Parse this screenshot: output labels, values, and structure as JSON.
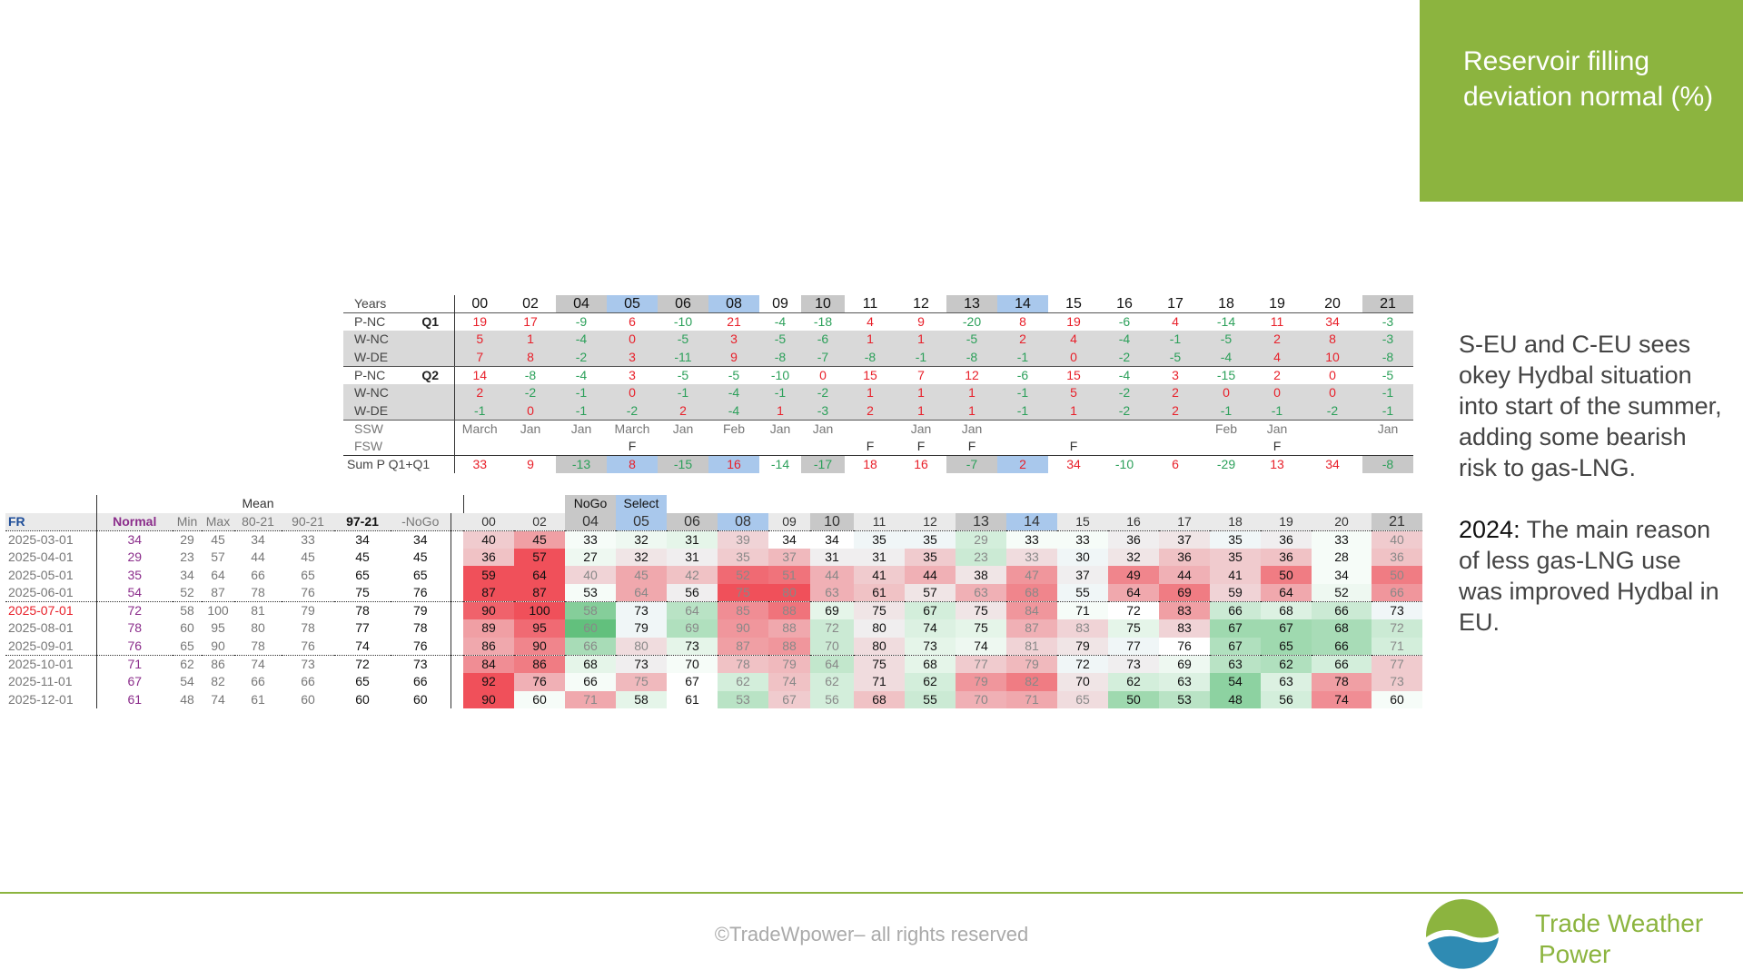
{
  "title": "Reservoir filling deviation normal (%)",
  "side_text": {
    "p1": "S-EU and C-EU sees okey Hydbal situation into start of the summer, adding some bearish risk to gas-LNG.",
    "p2_label": "2024:",
    "p2_rest": " The main reason of less gas-LNG use was improved Hydbal in EU."
  },
  "footer": {
    "copyright": "©TradeWpower– all rights reserved",
    "logo_line1": "Trade Weather",
    "logo_line2": "Power"
  },
  "colors": {
    "accent": "#8cb43f",
    "red": "#e8202a",
    "green": "#2ca05a",
    "blue_hl": "#a9c8ec",
    "gray_hl": "#c8c8c8"
  },
  "top_table": {
    "years_label": "Years",
    "years": [
      "00",
      "02",
      "04",
      "05",
      "06",
      "08",
      "09",
      "10",
      "11",
      "12",
      "13",
      "14",
      "15",
      "16",
      "17",
      "18",
      "19",
      "20",
      "21"
    ],
    "year_hl": [
      "",
      "",
      "g",
      "b",
      "g",
      "b",
      "",
      "g",
      "",
      "",
      "g",
      "b",
      "",
      "",
      "",
      "",
      "",
      "",
      "g"
    ],
    "rows": [
      {
        "label": "P-NC",
        "q": "Q1",
        "gray": false,
        "values": [
          19,
          17,
          -9,
          6,
          -10,
          21,
          -4,
          -18,
          4,
          9,
          -20,
          8,
          19,
          -6,
          4,
          -14,
          11,
          34,
          -3
        ]
      },
      {
        "label": "W-NC",
        "q": "",
        "gray": true,
        "values": [
          5,
          1,
          -4,
          0,
          -5,
          3,
          -5,
          -6,
          1,
          1,
          -5,
          2,
          4,
          -4,
          -1,
          -5,
          2,
          8,
          -3
        ]
      },
      {
        "label": "W-DE",
        "q": "",
        "gray": true,
        "values": [
          7,
          8,
          -2,
          3,
          -11,
          9,
          -8,
          -7,
          -8,
          -1,
          -8,
          -1,
          0,
          -2,
          -5,
          -4,
          4,
          10,
          -8
        ]
      },
      {
        "label": "P-NC",
        "q": "Q2",
        "gray": false,
        "values": [
          14,
          -8,
          -4,
          3,
          -5,
          -5,
          -10,
          0,
          15,
          7,
          12,
          -6,
          15,
          -4,
          3,
          -15,
          2,
          0,
          -5
        ]
      },
      {
        "label": "W-NC",
        "q": "",
        "gray": true,
        "values": [
          2,
          -2,
          -1,
          0,
          -1,
          -4,
          -1,
          -2,
          1,
          1,
          1,
          -1,
          5,
          -2,
          2,
          0,
          0,
          0,
          -1
        ]
      },
      {
        "label": "W-DE",
        "q": "",
        "gray": true,
        "values": [
          -1,
          0,
          -1,
          -2,
          2,
          -4,
          1,
          -3,
          2,
          1,
          1,
          -1,
          1,
          -2,
          2,
          -1,
          -1,
          -2,
          -1
        ]
      }
    ],
    "ssw_label": "SSW",
    "ssw": [
      "March",
      "Jan",
      "Jan",
      "March",
      "Jan",
      "Feb",
      "Jan",
      "Jan",
      "",
      "Jan",
      "Jan",
      "",
      "",
      "",
      "",
      "Feb",
      "Jan",
      "",
      "Jan"
    ],
    "fsw_label": "FSW",
    "fsw": [
      "",
      "",
      "",
      "F",
      "",
      "",
      "",
      "",
      "F",
      "F",
      "F",
      "",
      "F",
      "",
      "",
      "",
      "F",
      "",
      ""
    ],
    "sum_label": "Sum P Q1+Q1",
    "sum": [
      33,
      9,
      -13,
      8,
      -15,
      16,
      -14,
      -17,
      18,
      16,
      -7,
      2,
      34,
      -10,
      6,
      -29,
      13,
      34,
      -8
    ]
  },
  "bottom_table": {
    "mean_label": "Mean",
    "nogo_label": "NoGo",
    "select_label": "Select",
    "region": "FR",
    "stat_headers": [
      "Normal",
      "Min",
      "Max",
      "80-21",
      "90-21",
      "97-21",
      "-NoGo"
    ],
    "years": [
      "00",
      "02",
      "04",
      "05",
      "06",
      "08",
      "09",
      "10",
      "11",
      "12",
      "13",
      "14",
      "15",
      "16",
      "17",
      "18",
      "19",
      "20",
      "21"
    ],
    "rows": [
      {
        "date": "2025-03-01",
        "stats": [
          34,
          29,
          45,
          34,
          33,
          34,
          34
        ],
        "v": [
          40,
          45,
          33,
          32,
          31,
          39,
          34,
          34,
          35,
          35,
          29,
          33,
          33,
          36,
          37,
          35,
          36,
          33,
          40
        ]
      },
      {
        "date": "2025-04-01",
        "stats": [
          29,
          23,
          57,
          44,
          45,
          45,
          45
        ],
        "v": [
          36,
          57,
          27,
          32,
          31,
          35,
          37,
          31,
          31,
          35,
          23,
          33,
          30,
          32,
          36,
          35,
          36,
          28,
          36
        ]
      },
      {
        "date": "2025-05-01",
        "stats": [
          35,
          34,
          64,
          66,
          65,
          65,
          65
        ],
        "v": [
          59,
          64,
          40,
          45,
          42,
          52,
          51,
          44,
          41,
          44,
          38,
          47,
          37,
          49,
          44,
          41,
          50,
          34,
          50
        ]
      },
      {
        "date": "2025-06-01",
        "stats": [
          54,
          52,
          87,
          78,
          76,
          75,
          76
        ],
        "v": [
          87,
          87,
          53,
          64,
          56,
          75,
          80,
          63,
          61,
          57,
          63,
          68,
          55,
          64,
          69,
          59,
          64,
          52,
          66
        ]
      },
      {
        "date": "2025-07-01",
        "stats": [
          72,
          58,
          100,
          81,
          79,
          78,
          79
        ],
        "v": [
          90,
          100,
          58,
          73,
          64,
          85,
          88,
          69,
          75,
          67,
          75,
          84,
          71,
          72,
          83,
          66,
          68,
          66,
          73
        ]
      },
      {
        "date": "2025-08-01",
        "stats": [
          78,
          60,
          95,
          80,
          78,
          77,
          78
        ],
        "v": [
          89,
          95,
          60,
          79,
          69,
          90,
          88,
          72,
          80,
          74,
          75,
          87,
          83,
          75,
          83,
          67,
          67,
          68,
          72
        ]
      },
      {
        "date": "2025-09-01",
        "stats": [
          76,
          65,
          90,
          78,
          76,
          74,
          76
        ],
        "v": [
          86,
          90,
          66,
          80,
          73,
          87,
          88,
          70,
          80,
          73,
          74,
          81,
          79,
          77,
          76,
          67,
          65,
          66,
          71
        ]
      },
      {
        "date": "2025-10-01",
        "stats": [
          71,
          62,
          86,
          74,
          73,
          72,
          73
        ],
        "v": [
          84,
          86,
          68,
          73,
          70,
          78,
          79,
          64,
          75,
          68,
          77,
          79,
          72,
          73,
          69,
          63,
          62,
          66,
          77
        ]
      },
      {
        "date": "2025-11-01",
        "stats": [
          67,
          54,
          82,
          66,
          66,
          65,
          66
        ],
        "v": [
          92,
          76,
          66,
          75,
          67,
          62,
          74,
          62,
          71,
          62,
          79,
          82,
          70,
          62,
          63,
          54,
          63,
          78,
          73
        ]
      },
      {
        "date": "2025-12-01",
        "stats": [
          61,
          48,
          74,
          61,
          60,
          60,
          60
        ],
        "v": [
          90,
          60,
          71,
          58,
          61,
          53,
          67,
          56,
          68,
          55,
          70,
          71,
          65,
          50,
          53,
          48,
          56,
          74,
          60
        ]
      }
    ]
  }
}
